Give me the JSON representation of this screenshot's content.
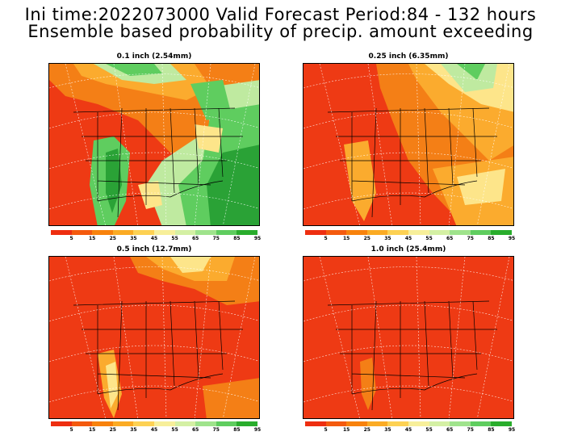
{
  "header": {
    "line1": "Ini time:2022073000  Valid Forecast Period:84 - 132 hours",
    "line2": "Ensemble based probability of precip. amount exceeding"
  },
  "panels": [
    {
      "title": "0.1 inch (2.54mm)"
    },
    {
      "title": "0.25 inch (6.35mm)"
    },
    {
      "title": "0.5 inch (12.7mm)"
    },
    {
      "title": "1.0 inch (25.4mm)"
    }
  ],
  "colorbar": {
    "labels": [
      "5",
      "15",
      "25",
      "35",
      "45",
      "55",
      "65",
      "75",
      "85",
      "95"
    ],
    "colors": [
      "#ee2e10",
      "#f45a0e",
      "#f8820c",
      "#fbab24",
      "#fdd153",
      "#f7ef9a",
      "#d4f0a4",
      "#9fe38c",
      "#5fcd5f",
      "#29ad2c"
    ]
  },
  "colors": {
    "red": "#ee3a14",
    "orange": "#f47f16",
    "light_orange": "#fbab2e",
    "yellow": "#fde58a",
    "light_green": "#bfeaa0",
    "green": "#5fcd5f",
    "dark_green": "#2aa236"
  }
}
